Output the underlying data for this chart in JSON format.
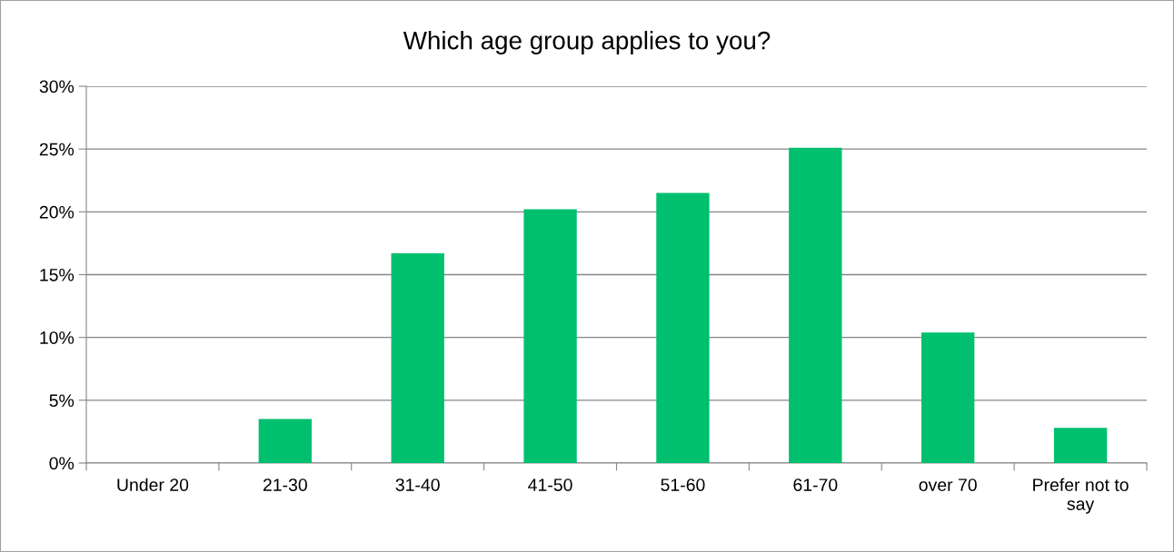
{
  "chart_data": {
    "type": "bar",
    "title": "Which age group applies to you?",
    "categories": [
      "Under 20",
      "21-30",
      "31-40",
      "41-50",
      "51-60",
      "61-70",
      "over 70",
      "Prefer not to\nsay"
    ],
    "values": [
      0,
      3.5,
      16.7,
      20.2,
      21.5,
      25.1,
      10.4,
      2.8
    ],
    "color": "#00bf6f",
    "ylim": [
      0,
      30
    ],
    "yticks": [
      {
        "value": 0,
        "label": "0%"
      },
      {
        "value": 5,
        "label": "5%"
      },
      {
        "value": 10,
        "label": "10%"
      },
      {
        "value": 15,
        "label": "15%"
      },
      {
        "value": 20,
        "label": "20%"
      },
      {
        "value": 25,
        "label": "25%"
      },
      {
        "value": 30,
        "label": "30%"
      }
    ],
    "grid": "y",
    "legend": false
  }
}
